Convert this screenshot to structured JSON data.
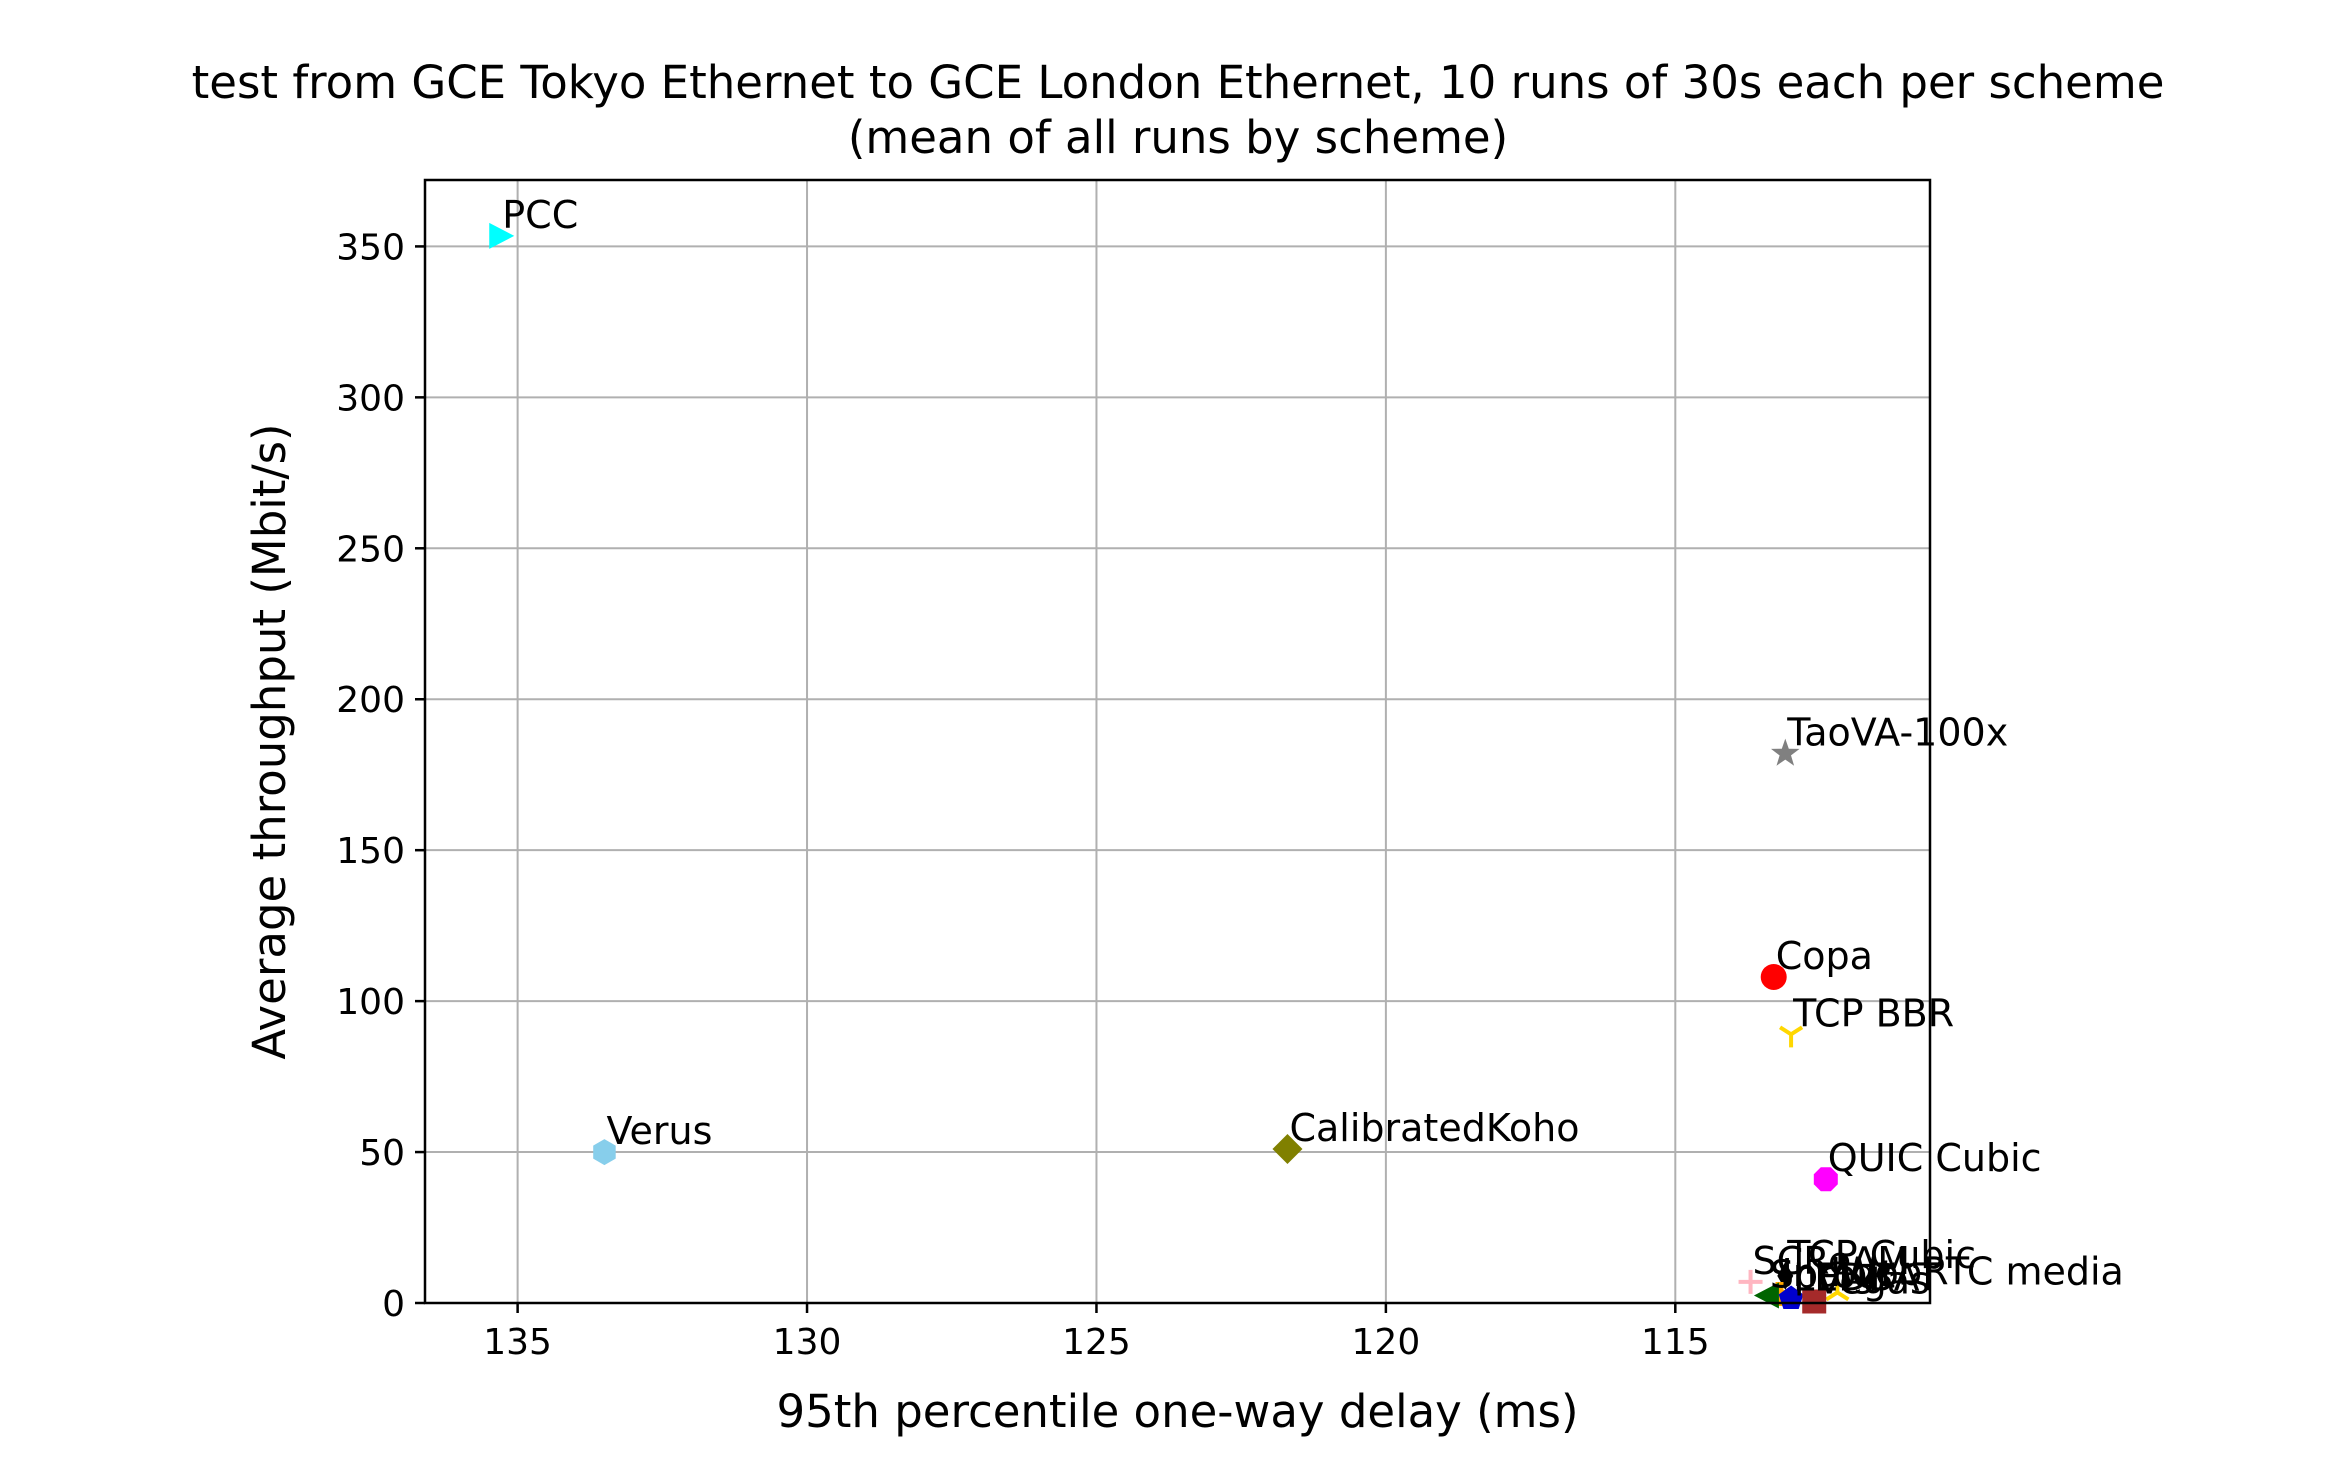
{
  "chart_data": {
    "type": "scatter",
    "title": "test from GCE Tokyo Ethernet to GCE London Ethernet, 10 runs of 30s each per scheme",
    "subtitle": "(mean of all runs by scheme)",
    "xlabel": "95th percentile one-way delay (ms)",
    "ylabel": "Average throughput (Mbit/s)",
    "x_inverted": true,
    "xlim": [
      136.6,
      110.6
    ],
    "ylim": [
      0,
      372
    ],
    "xticks": [
      135,
      130,
      125,
      120,
      115
    ],
    "yticks": [
      0,
      50,
      100,
      150,
      200,
      250,
      300,
      350
    ],
    "grid": true,
    "points": [
      {
        "name": "PCC",
        "x": 135.3,
        "y": 353.5,
        "color": "#00ffff",
        "marker": "triangle-right"
      },
      {
        "name": "TaoVA-100x",
        "x": 113.1,
        "y": 182.0,
        "color": "#808080",
        "marker": "star"
      },
      {
        "name": "Copa",
        "x": 113.3,
        "y": 108.0,
        "color": "#ff0000",
        "marker": "circle"
      },
      {
        "name": "TCP BBR",
        "x": 113.0,
        "y": 89.0,
        "color": "#ffd700",
        "marker": "tri-down"
      },
      {
        "name": "Verus",
        "x": 133.5,
        "y": 50.0,
        "color": "#87ceeb",
        "marker": "hexagon"
      },
      {
        "name": "CalibratedKoho",
        "x": 121.7,
        "y": 51.0,
        "color": "#808000",
        "marker": "diamond"
      },
      {
        "name": "QUIC Cubic",
        "x": 112.4,
        "y": 41.0,
        "color": "#ff00ff",
        "marker": "octagon"
      },
      {
        "name": "TCP Cubic",
        "x": 113.1,
        "y": 9.0,
        "color": "#000000",
        "marker": "diamond-thin"
      },
      {
        "name": "SCReAM",
        "x": 113.7,
        "y": 7.0,
        "color": "#ffb6c1",
        "marker": "plus"
      },
      {
        "name": "WebRTC media",
        "x": 112.2,
        "y": 3.5,
        "color": "#ffd700",
        "marker": "tri-up"
      },
      {
        "name": "Indigo",
        "x": 113.2,
        "y": 3.0,
        "color": "#ffa500",
        "marker": "plus-thick"
      },
      {
        "name": "Sprout",
        "x": 113.4,
        "y": 2.5,
        "color": "#006400",
        "marker": "triangle-left"
      },
      {
        "name": "LEDBAT",
        "x": 113.0,
        "y": 1.5,
        "color": "#0000cd",
        "marker": "pentagon"
      },
      {
        "name": "Vegas",
        "x": 112.6,
        "y": 0.5,
        "color": "#a52a2a",
        "marker": "square"
      }
    ],
    "dense_labels": [
      "TCP Cubic",
      "SCReAM",
      "WebRTC media",
      "Indigo",
      "Sprout",
      "LEDBAT",
      "Vegas"
    ]
  }
}
